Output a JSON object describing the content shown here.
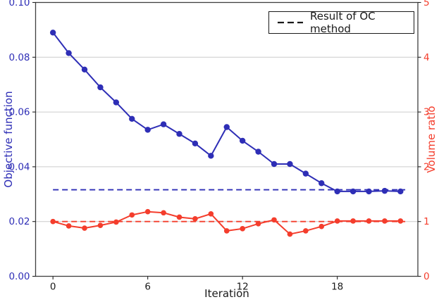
{
  "figure": {
    "background": "#ffffff"
  },
  "chart_data": {
    "type": "line",
    "title": "",
    "xlabel": "Iteration",
    "ylabel_left": "Objective function",
    "ylabel_right": "Volume ratio",
    "grid": true,
    "colors": {
      "blue": "#2e2eb6",
      "red": "#f43d2c",
      "grid": "#cccccc",
      "spine": "#3f3f3f",
      "tick": "#222222",
      "x_tick_label": "#1a1a1a",
      "legend_line": "#1a1a1a"
    },
    "axes": {
      "left": {
        "min": 0,
        "max": 0.1,
        "tick_values": [
          0,
          0.02,
          0.04,
          0.06,
          0.08,
          0.1
        ],
        "tick_labels": [
          "0.00",
          "0.02",
          "0.04",
          "0.06",
          "0.08",
          "0.10"
        ],
        "color": "#2e2eb6"
      },
      "right": {
        "min": 0,
        "max": 5,
        "tick_values": [
          0,
          1,
          2,
          3,
          4,
          5
        ],
        "tick_labels": [
          "0",
          "1",
          "2",
          "3",
          "4",
          "5"
        ],
        "color": "#f43d2c"
      },
      "x": {
        "min": -1.1,
        "max": 23.1,
        "tick_values": [
          0,
          6,
          12,
          18
        ],
        "tick_labels": [
          "0",
          "6",
          "12",
          "18"
        ]
      }
    },
    "x": [
      0,
      1,
      2,
      3,
      4,
      5,
      6,
      7,
      8,
      9,
      10,
      11,
      12,
      13,
      14,
      15,
      16,
      17,
      18,
      19,
      20,
      21,
      22
    ],
    "series": [
      {
        "name": "objective-function",
        "axis": "left",
        "style": "solid-markers",
        "color": "#2e2eb6",
        "values": [
          0.089,
          0.0815,
          0.0755,
          0.069,
          0.0635,
          0.0575,
          0.0535,
          0.0555,
          0.052,
          0.0485,
          0.044,
          0.0545,
          0.0495,
          0.0455,
          0.041,
          0.041,
          0.0375,
          0.034,
          0.031,
          0.031,
          0.031,
          0.0312,
          0.031
        ]
      },
      {
        "name": "volume-ratio",
        "axis": "right",
        "style": "solid-markers",
        "color": "#f43d2c",
        "values": [
          1.0,
          0.92,
          0.88,
          0.93,
          0.99,
          1.12,
          1.18,
          1.16,
          1.08,
          1.05,
          1.14,
          0.83,
          0.87,
          0.96,
          1.03,
          0.77,
          0.83,
          0.91,
          1.01,
          1.01,
          1.01,
          1.01,
          1.01
        ]
      },
      {
        "name": "oc-method-objective",
        "axis": "left",
        "style": "dashed-constant",
        "color": "#2e2eb6",
        "constant": 0.0316,
        "x_start": 0,
        "x_end": 22.3
      },
      {
        "name": "oc-method-volume",
        "axis": "right",
        "style": "dashed-constant",
        "color": "#f43d2c",
        "constant": 1.0,
        "x_start": 0,
        "x_end": 22.3
      }
    ],
    "legend": {
      "label": "Result of OC method",
      "position": "upper right"
    }
  }
}
